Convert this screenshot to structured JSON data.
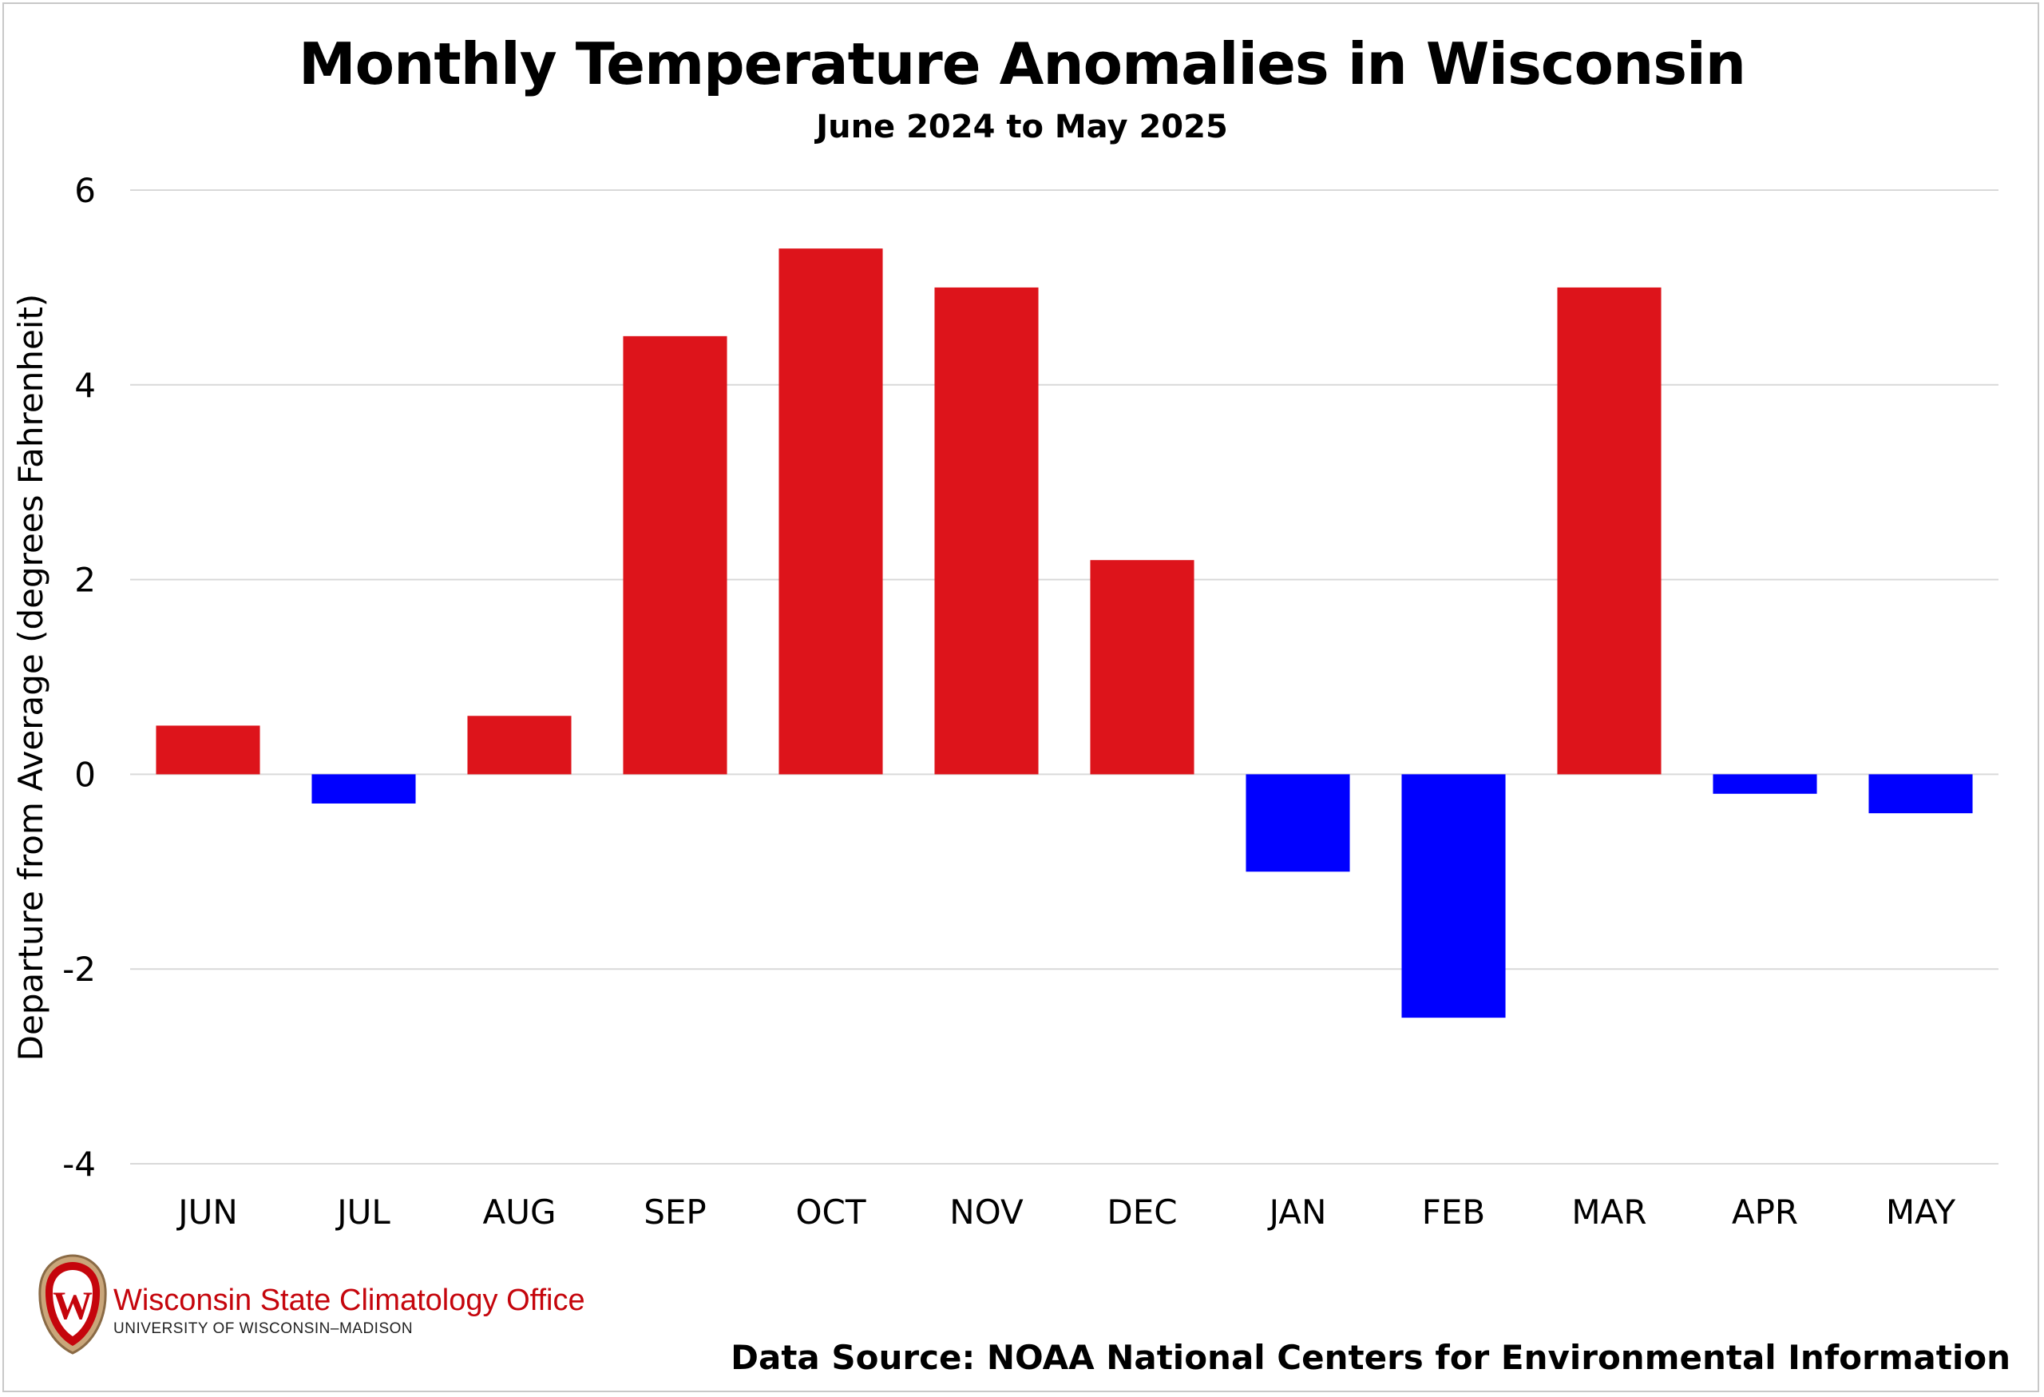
{
  "chart_data": {
    "type": "bar",
    "title": "Monthly Temperature Anomalies in Wisconsin",
    "subtitle": "June 2024 to May 2025",
    "ylabel": "Departure from Average (degrees Fahrenheit)",
    "xlabel": "",
    "categories": [
      "JUN",
      "JUL",
      "AUG",
      "SEP",
      "OCT",
      "NOV",
      "DEC",
      "JAN",
      "FEB",
      "MAR",
      "APR",
      "MAY"
    ],
    "values": [
      0.5,
      -0.3,
      0.6,
      4.5,
      5.4,
      5.0,
      2.2,
      -1.0,
      -2.5,
      5.0,
      -0.2,
      -0.4
    ],
    "ylim": [
      -4,
      6
    ],
    "yticks": [
      -4,
      -2,
      0,
      2,
      4,
      6
    ],
    "grid": true,
    "legend": "none",
    "colors": {
      "positive": "#dd141b",
      "negative": "#0000ff",
      "gridline": "#d9d9d9"
    }
  },
  "logo": {
    "name": "Wisconsin State Climatology Office",
    "subtitle": "UNIVERSITY OF WISCONSIN–MADISON",
    "crest_letter": "W",
    "crest_icon": "uw-crest-icon",
    "brand_color": "#c5050c"
  },
  "source": "Data Source: NOAA National Centers for Environmental Information"
}
